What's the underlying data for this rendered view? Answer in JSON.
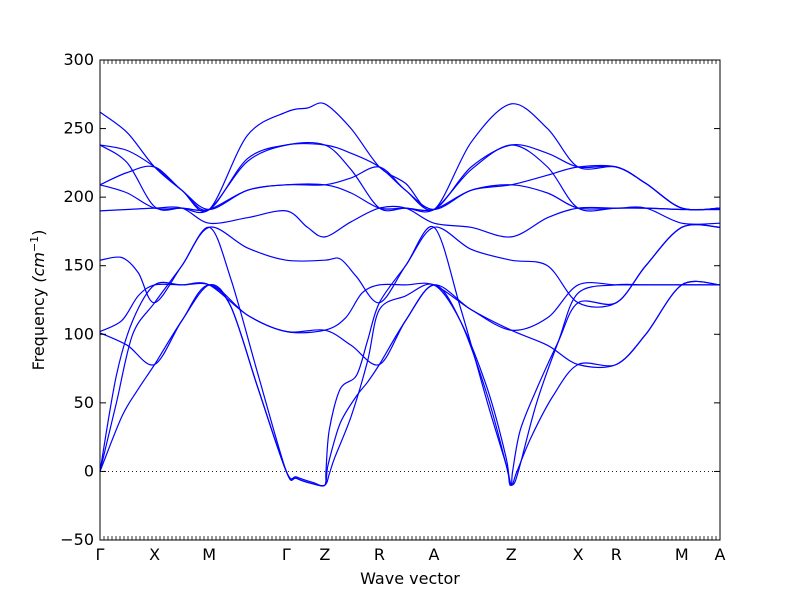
{
  "chart_data": {
    "type": "line",
    "title": "",
    "xlabel": "Wave vector",
    "ylabel_prefix": "Frequency ",
    "ylabel_unit": "(cm",
    "ylabel_exp": "−1",
    "ylabel_close": ")",
    "ylim": [
      -50,
      300
    ],
    "y_ticks": [
      -50,
      0,
      50,
      100,
      150,
      200,
      250,
      300
    ],
    "y_tick_labels": [
      "−50",
      "0",
      "50",
      "100",
      "150",
      "200",
      "250",
      "300"
    ],
    "x_ticks": [
      {
        "label": "Γ",
        "x": 0
      },
      {
        "label": "X",
        "x": 0.5
      },
      {
        "label": "M",
        "x": 1.0
      },
      {
        "label": "Γ",
        "x": 1.707
      },
      {
        "label": "Z",
        "x": 2.06
      },
      {
        "label": "R",
        "x": 2.56
      },
      {
        "label": "A",
        "x": 3.06
      },
      {
        "label": "Z",
        "x": 3.767
      },
      {
        "label": "X",
        "x": 4.38
      },
      {
        "label": "R",
        "x": 4.73
      },
      {
        "label": "M",
        "x": 5.33
      },
      {
        "label": "A",
        "x": 5.68
      }
    ],
    "xlim": [
      0,
      5.68
    ],
    "zero_line": true,
    "line_color": "#0000ff",
    "series": [
      {
        "points": [
          [
            0,
            262
          ],
          [
            0.25,
            247
          ],
          [
            0.5,
            222
          ],
          [
            0.75,
            205
          ],
          [
            1.0,
            191
          ],
          [
            1.35,
            245
          ],
          [
            1.707,
            262
          ],
          [
            1.9,
            265
          ],
          [
            2.06,
            268
          ],
          [
            2.3,
            250
          ],
          [
            2.56,
            222
          ],
          [
            2.8,
            210
          ],
          [
            3.06,
            191
          ],
          [
            3.4,
            240
          ],
          [
            3.767,
            268
          ],
          [
            4.1,
            250
          ],
          [
            4.38,
            222
          ],
          [
            4.73,
            222
          ],
          [
            5.0,
            210
          ],
          [
            5.33,
            192
          ],
          [
            5.68,
            192
          ]
        ]
      },
      {
        "points": [
          [
            0,
            238
          ],
          [
            0.25,
            234
          ],
          [
            0.5,
            222
          ],
          [
            0.75,
            205
          ],
          [
            1.0,
            191
          ],
          [
            1.35,
            228
          ],
          [
            1.707,
            238
          ],
          [
            2.06,
            238
          ],
          [
            2.3,
            232
          ],
          [
            2.56,
            222
          ],
          [
            2.8,
            205
          ],
          [
            3.06,
            191
          ],
          [
            3.4,
            222
          ],
          [
            3.767,
            238
          ],
          [
            4.1,
            232
          ],
          [
            4.38,
            222
          ],
          [
            4.73,
            222
          ],
          [
            5.0,
            210
          ],
          [
            5.33,
            192
          ],
          [
            5.68,
            192
          ]
        ]
      },
      {
        "points": [
          [
            0,
            238
          ],
          [
            0.25,
            225
          ],
          [
            0.5,
            193
          ],
          [
            0.75,
            192
          ],
          [
            1.0,
            191
          ],
          [
            1.35,
            226
          ],
          [
            1.707,
            238
          ],
          [
            2.06,
            238
          ],
          [
            2.3,
            220
          ],
          [
            2.56,
            192
          ],
          [
            2.8,
            192
          ],
          [
            3.06,
            191
          ],
          [
            3.4,
            220
          ],
          [
            3.767,
            238
          ],
          [
            4.1,
            222
          ],
          [
            4.38,
            192
          ],
          [
            4.73,
            192
          ],
          [
            5.0,
            192
          ],
          [
            5.33,
            191
          ],
          [
            5.68,
            191
          ]
        ]
      },
      {
        "points": [
          [
            0,
            209
          ],
          [
            0.25,
            218
          ],
          [
            0.5,
            222
          ],
          [
            0.75,
            205
          ],
          [
            1.0,
            191
          ],
          [
            1.35,
            205
          ],
          [
            1.707,
            209
          ],
          [
            2.06,
            209
          ],
          [
            2.3,
            214
          ],
          [
            2.56,
            222
          ],
          [
            2.8,
            205
          ],
          [
            3.06,
            191
          ],
          [
            3.4,
            205
          ],
          [
            3.767,
            209
          ],
          [
            4.1,
            216
          ],
          [
            4.38,
            222
          ],
          [
            4.73,
            222
          ],
          [
            5.0,
            210
          ],
          [
            5.33,
            192
          ],
          [
            5.68,
            192
          ]
        ]
      },
      {
        "points": [
          [
            0,
            209
          ],
          [
            0.25,
            203
          ],
          [
            0.5,
            192
          ],
          [
            0.75,
            192
          ],
          [
            1.0,
            191
          ],
          [
            1.35,
            205
          ],
          [
            1.707,
            209
          ],
          [
            2.06,
            209
          ],
          [
            2.3,
            203
          ],
          [
            2.56,
            192
          ],
          [
            2.8,
            192
          ],
          [
            3.06,
            191
          ],
          [
            3.4,
            205
          ],
          [
            3.767,
            209
          ],
          [
            4.1,
            203
          ],
          [
            4.38,
            192
          ],
          [
            4.73,
            192
          ],
          [
            5.0,
            192
          ],
          [
            5.33,
            191
          ],
          [
            5.68,
            191
          ]
        ]
      },
      {
        "points": [
          [
            0,
            190
          ],
          [
            0.25,
            191
          ],
          [
            0.5,
            192
          ],
          [
            0.75,
            192
          ],
          [
            1.0,
            181
          ],
          [
            1.35,
            185
          ],
          [
            1.707,
            190
          ],
          [
            1.9,
            178
          ],
          [
            2.06,
            171
          ],
          [
            2.3,
            182
          ],
          [
            2.56,
            192
          ],
          [
            2.8,
            192
          ],
          [
            3.06,
            181
          ],
          [
            3.4,
            178
          ],
          [
            3.767,
            171
          ],
          [
            4.1,
            185
          ],
          [
            4.38,
            192
          ],
          [
            4.73,
            192
          ],
          [
            5.0,
            192
          ],
          [
            5.33,
            181
          ],
          [
            5.68,
            181
          ]
        ]
      },
      {
        "points": [
          [
            0,
            154
          ],
          [
            0.2,
            156
          ],
          [
            0.35,
            145
          ],
          [
            0.5,
            123
          ],
          [
            0.75,
            150
          ],
          [
            1.0,
            178
          ],
          [
            1.35,
            163
          ],
          [
            1.707,
            154
          ],
          [
            2.06,
            154
          ],
          [
            2.2,
            155
          ],
          [
            2.35,
            142
          ],
          [
            2.56,
            123
          ],
          [
            2.8,
            150
          ],
          [
            3.06,
            178
          ],
          [
            3.4,
            162
          ],
          [
            3.767,
            154
          ],
          [
            4.1,
            150
          ],
          [
            4.38,
            123
          ],
          [
            4.73,
            123
          ],
          [
            5.0,
            150
          ],
          [
            5.33,
            178
          ],
          [
            5.68,
            178
          ]
        ]
      },
      {
        "points": [
          [
            0,
            102
          ],
          [
            0.2,
            110
          ],
          [
            0.35,
            128
          ],
          [
            0.5,
            136
          ],
          [
            0.75,
            136
          ],
          [
            1.0,
            136
          ],
          [
            1.35,
            114
          ],
          [
            1.707,
            102
          ],
          [
            2.06,
            103
          ],
          [
            2.25,
            112
          ],
          [
            2.4,
            130
          ],
          [
            2.56,
            136
          ],
          [
            2.8,
            136
          ],
          [
            3.06,
            136
          ],
          [
            3.4,
            118
          ],
          [
            3.767,
            103
          ],
          [
            4.1,
            112
          ],
          [
            4.38,
            136
          ],
          [
            4.73,
            136
          ],
          [
            5.0,
            136
          ],
          [
            5.33,
            136
          ],
          [
            5.68,
            136
          ]
        ]
      },
      {
        "points": [
          [
            0,
            101
          ],
          [
            0.25,
            92
          ],
          [
            0.5,
            78
          ],
          [
            0.75,
            110
          ],
          [
            1.0,
            136
          ],
          [
            1.35,
            114
          ],
          [
            1.707,
            102
          ],
          [
            2.06,
            103
          ],
          [
            2.3,
            92
          ],
          [
            2.56,
            78
          ],
          [
            2.8,
            110
          ],
          [
            3.06,
            136
          ],
          [
            3.4,
            118
          ],
          [
            3.767,
            103
          ],
          [
            4.1,
            92
          ],
          [
            4.38,
            78
          ],
          [
            4.73,
            78
          ],
          [
            5.0,
            100
          ],
          [
            5.33,
            136
          ],
          [
            5.68,
            136
          ]
        ]
      },
      {
        "points": [
          [
            0,
            0
          ],
          [
            0.15,
            70
          ],
          [
            0.3,
            110
          ],
          [
            0.5,
            136
          ],
          [
            0.75,
            136
          ],
          [
            1.0,
            136
          ],
          [
            1.2,
            120
          ],
          [
            1.45,
            60
          ],
          [
            1.707,
            0
          ],
          [
            1.8,
            -5
          ],
          [
            1.95,
            -9
          ],
          [
            2.06,
            -10
          ],
          [
            2.1,
            -2
          ],
          [
            2.15,
            10
          ],
          [
            2.3,
            40
          ],
          [
            2.45,
            80
          ],
          [
            2.56,
            118
          ],
          [
            2.8,
            128
          ],
          [
            3.06,
            136
          ],
          [
            3.3,
            110
          ],
          [
            3.55,
            60
          ],
          [
            3.72,
            10
          ],
          [
            3.75,
            -8
          ],
          [
            3.767,
            -10
          ],
          [
            3.8,
            -8
          ],
          [
            3.85,
            5
          ],
          [
            4.0,
            50
          ],
          [
            4.2,
            95
          ],
          [
            4.38,
            130
          ],
          [
            4.73,
            136
          ],
          [
            5.0,
            136
          ],
          [
            5.33,
            136
          ],
          [
            5.68,
            136
          ]
        ]
      },
      {
        "points": [
          [
            0,
            0
          ],
          [
            0.15,
            50
          ],
          [
            0.3,
            100
          ],
          [
            0.5,
            123
          ],
          [
            0.75,
            150
          ],
          [
            1.0,
            178
          ],
          [
            1.2,
            140
          ],
          [
            1.45,
            70
          ],
          [
            1.707,
            0
          ],
          [
            1.8,
            -5
          ],
          [
            1.95,
            -9
          ],
          [
            2.06,
            -10
          ],
          [
            2.07,
            0
          ],
          [
            2.1,
            30
          ],
          [
            2.2,
            60
          ],
          [
            2.35,
            70
          ],
          [
            2.45,
            95
          ],
          [
            2.56,
            123
          ],
          [
            2.8,
            150
          ],
          [
            3.06,
            178
          ],
          [
            3.3,
            120
          ],
          [
            3.55,
            50
          ],
          [
            3.72,
            5
          ],
          [
            3.767,
            -10
          ],
          [
            3.78,
            0
          ],
          [
            3.85,
            30
          ],
          [
            4.0,
            60
          ],
          [
            4.2,
            95
          ],
          [
            4.38,
            123
          ],
          [
            4.73,
            123
          ],
          [
            5.0,
            150
          ],
          [
            5.33,
            178
          ],
          [
            5.68,
            178
          ]
        ]
      },
      {
        "points": [
          [
            0,
            0
          ],
          [
            0.2,
            40
          ],
          [
            0.35,
            60
          ],
          [
            0.5,
            78
          ],
          [
            0.75,
            110
          ],
          [
            1.0,
            136
          ],
          [
            1.2,
            120
          ],
          [
            1.45,
            60
          ],
          [
            1.707,
            0
          ],
          [
            1.8,
            -4
          ],
          [
            1.95,
            -8
          ],
          [
            2.06,
            -10
          ],
          [
            2.09,
            5
          ],
          [
            2.2,
            35
          ],
          [
            2.35,
            55
          ],
          [
            2.45,
            65
          ],
          [
            2.56,
            78
          ],
          [
            2.8,
            110
          ],
          [
            3.06,
            136
          ],
          [
            3.3,
            110
          ],
          [
            3.55,
            55
          ],
          [
            3.72,
            5
          ],
          [
            3.767,
            -10
          ],
          [
            3.82,
            0
          ],
          [
            3.95,
            25
          ],
          [
            4.15,
            55
          ],
          [
            4.38,
            78
          ],
          [
            4.73,
            78
          ],
          [
            5.0,
            100
          ],
          [
            5.33,
            136
          ],
          [
            5.68,
            136
          ]
        ]
      }
    ]
  }
}
